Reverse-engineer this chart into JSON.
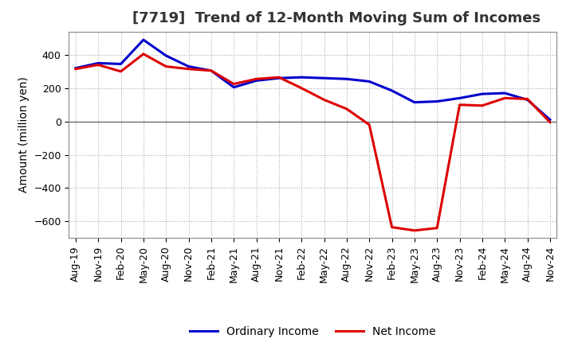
{
  "title": "[7719]  Trend of 12-Month Moving Sum of Incomes",
  "ylabel": "Amount (million yen)",
  "background_color": "#ffffff",
  "grid_color": "#aaaaaa",
  "ordinary_income_color": "#0000cc",
  "net_income_color": "#dd0000",
  "x_labels": [
    "Aug-19",
    "Nov-19",
    "Feb-20",
    "May-20",
    "Aug-20",
    "Nov-20",
    "Feb-21",
    "May-21",
    "Aug-21",
    "Nov-21",
    "Feb-22",
    "May-22",
    "Aug-22",
    "Nov-22",
    "Feb-23",
    "May-23",
    "Aug-23",
    "Nov-23",
    "Feb-24",
    "May-24",
    "Aug-24",
    "Nov-24"
  ],
  "ordinary_income": [
    320,
    350,
    345,
    490,
    395,
    330,
    305,
    205,
    245,
    260,
    265,
    260,
    255,
    240,
    185,
    115,
    120,
    140,
    165,
    170,
    130,
    10
  ],
  "net_income": [
    315,
    340,
    300,
    405,
    330,
    315,
    305,
    225,
    255,
    265,
    200,
    130,
    75,
    -20,
    -635,
    -655,
    -640,
    100,
    95,
    140,
    135,
    -5
  ],
  "ylim": [
    -700,
    540
  ],
  "yticks": [
    -600,
    -400,
    -200,
    0,
    200,
    400
  ],
  "title_fontsize": 13,
  "axis_fontsize": 10,
  "tick_fontsize": 9,
  "legend_fontsize": 10,
  "line_width": 2.2
}
